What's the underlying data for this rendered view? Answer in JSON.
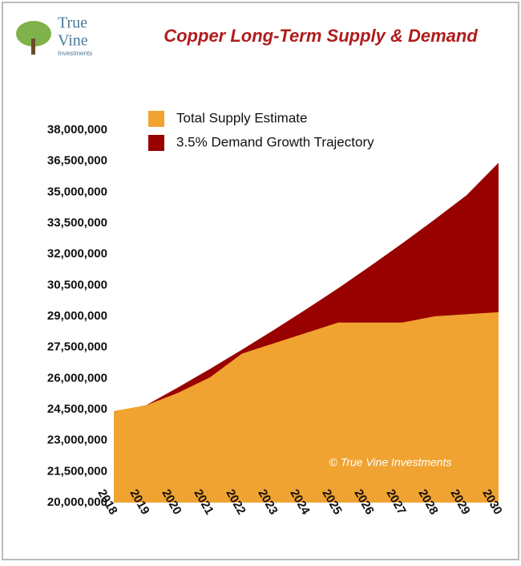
{
  "logo": {
    "line1": "True",
    "line2": "Vine",
    "line3": "Investments"
  },
  "chart_data": {
    "type": "area",
    "title": "Copper Long-Term Supply & Demand",
    "annotation": "© True Vine Investments",
    "categories": [
      "2018",
      "2019",
      "2020",
      "2021",
      "2022",
      "2023",
      "2024",
      "2025",
      "2026",
      "2027",
      "2028",
      "2029",
      "2030"
    ],
    "series": [
      {
        "name": "3.5% Demand Growth Trajectory",
        "color": "#990000",
        "values": [
          24400000,
          24700000,
          25560000,
          26460000,
          27390000,
          28350000,
          29340000,
          30360000,
          31430000,
          32530000,
          33670000,
          34850000,
          36420000
        ]
      },
      {
        "name": "Total Supply Estimate",
        "color": "#f0a331",
        "values": [
          24420000,
          24700000,
          25300000,
          26050000,
          27200000,
          27700000,
          28200000,
          28700000,
          28700000,
          28700000,
          29000000,
          29100000,
          29200000
        ]
      }
    ],
    "legend_order": [
      1,
      0
    ],
    "ylim": [
      20000000,
      38000000
    ],
    "yticks": [
      {
        "value": 20000000,
        "label": "20,000,000"
      },
      {
        "value": 21500000,
        "label": "21,500,000"
      },
      {
        "value": 23000000,
        "label": "23,000,000"
      },
      {
        "value": 24500000,
        "label": "24,500,000"
      },
      {
        "value": 26000000,
        "label": "26,000,000"
      },
      {
        "value": 27500000,
        "label": "27,500,000"
      },
      {
        "value": 29000000,
        "label": "29,000,000"
      },
      {
        "value": 30500000,
        "label": "30,500,000"
      },
      {
        "value": 32000000,
        "label": "32,000,000"
      },
      {
        "value": 33500000,
        "label": "33,500,000"
      },
      {
        "value": 35000000,
        "label": "35,000,000"
      },
      {
        "value": 36500000,
        "label": "36,500,000"
      },
      {
        "value": 38000000,
        "label": "38,000,000"
      }
    ],
    "grid": false
  }
}
